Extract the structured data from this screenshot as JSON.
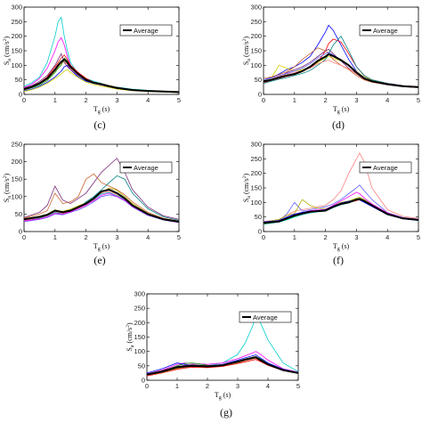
{
  "colors": {
    "average": "#000000",
    "records": [
      "#00cccc",
      "#ff00ff",
      "#00a000",
      "#0000ff",
      "#ff0000",
      "#d0d000",
      "#7a2a7a",
      "#cc6633",
      "#008080",
      "#ff8080",
      "#6060ff",
      "#b0b000"
    ]
  },
  "chart_data": [
    {
      "type": "line",
      "caption": "(c)",
      "xlabel": "T_g (s)",
      "ylabel": "S_a (cm/s^2)",
      "xlim": [
        0,
        5
      ],
      "ylim": [
        0,
        300
      ],
      "xticks": [
        0,
        1,
        2,
        3,
        4,
        5
      ],
      "yticks": [
        0,
        50,
        100,
        150,
        200,
        250,
        300
      ],
      "legend": {
        "label": "Average",
        "placement": "top-right"
      },
      "x": [
        0,
        0.25,
        0.5,
        0.75,
        1,
        1.1,
        1.2,
        1.3,
        1.4,
        1.5,
        1.75,
        2,
        2.25,
        2.5,
        2.75,
        3,
        3.5,
        4,
        4.5,
        5
      ],
      "average": [
        18,
        26,
        38,
        55,
        85,
        100,
        112,
        120,
        110,
        95,
        70,
        50,
        40,
        35,
        28,
        22,
        15,
        12,
        10,
        8
      ],
      "records": [
        [
          28,
          40,
          60,
          110,
          200,
          250,
          265,
          200,
          150,
          110,
          70,
          55,
          45,
          38,
          30,
          25,
          18,
          14,
          11,
          9
        ],
        [
          24,
          35,
          55,
          90,
          150,
          180,
          195,
          170,
          130,
          100,
          75,
          50,
          40,
          33,
          28,
          22,
          16,
          12,
          10,
          8
        ],
        [
          15,
          22,
          32,
          48,
          75,
          90,
          100,
          125,
          115,
          95,
          70,
          52,
          42,
          36,
          30,
          24,
          16,
          12,
          10,
          8
        ],
        [
          12,
          18,
          28,
          42,
          60,
          70,
          80,
          95,
          100,
          85,
          60,
          45,
          38,
          32,
          26,
          20,
          14,
          11,
          9,
          7
        ],
        [
          20,
          28,
          40,
          60,
          95,
          110,
          125,
          135,
          120,
          100,
          75,
          55,
          42,
          36,
          30,
          24,
          16,
          12,
          10,
          8
        ],
        [
          10,
          16,
          25,
          38,
          55,
          62,
          70,
          80,
          85,
          75,
          58,
          42,
          34,
          28,
          24,
          18,
          13,
          10,
          8,
          6
        ],
        [
          22,
          30,
          45,
          65,
          100,
          120,
          140,
          110,
          95,
          85,
          65,
          48,
          38,
          32,
          27,
          21,
          15,
          11,
          9,
          7
        ],
        [
          16,
          24,
          36,
          52,
          80,
          95,
          108,
          112,
          104,
          90,
          68,
          50,
          40,
          34,
          28,
          22,
          15,
          12,
          9,
          7
        ]
      ]
    },
    {
      "type": "line",
      "caption": "(d)",
      "xlabel": "T_g (s)",
      "ylabel": "S_a (cm/s^2)",
      "xlim": [
        0,
        5
      ],
      "ylim": [
        0,
        300
      ],
      "xticks": [
        0,
        1,
        2,
        3,
        4,
        5
      ],
      "yticks": [
        0,
        50,
        100,
        150,
        200,
        250,
        300
      ],
      "legend": {
        "label": "Average",
        "placement": "top-right"
      },
      "x": [
        0,
        0.25,
        0.5,
        0.75,
        1,
        1.25,
        1.5,
        1.75,
        2,
        2.1,
        2.25,
        2.5,
        2.75,
        3,
        3.25,
        3.5,
        4,
        4.5,
        5
      ],
      "average": [
        45,
        50,
        58,
        65,
        70,
        80,
        95,
        115,
        130,
        138,
        132,
        118,
        100,
        75,
        55,
        45,
        35,
        28,
        25
      ],
      "records": [
        [
          50,
          58,
          70,
          85,
          95,
          110,
          130,
          170,
          215,
          238,
          220,
          170,
          120,
          80,
          58,
          48,
          38,
          30,
          26
        ],
        [
          40,
          48,
          55,
          62,
          68,
          78,
          92,
          110,
          150,
          175,
          190,
          180,
          140,
          95,
          65,
          50,
          38,
          30,
          26
        ],
        [
          48,
          55,
          100,
          90,
          80,
          85,
          95,
          110,
          125,
          130,
          125,
          115,
          100,
          80,
          60,
          48,
          36,
          28,
          24
        ],
        [
          42,
          50,
          60,
          75,
          85,
          95,
          110,
          130,
          150,
          155,
          140,
          115,
          90,
          70,
          52,
          44,
          34,
          27,
          23
        ],
        [
          55,
          60,
          68,
          78,
          95,
          120,
          140,
          160,
          150,
          140,
          120,
          100,
          85,
          65,
          50,
          42,
          33,
          27,
          23
        ],
        [
          38,
          45,
          52,
          58,
          65,
          72,
          82,
          100,
          120,
          140,
          170,
          200,
          150,
          95,
          65,
          50,
          38,
          30,
          25
        ],
        [
          45,
          52,
          62,
          70,
          75,
          82,
          90,
          105,
          115,
          118,
          110,
          100,
          88,
          70,
          55,
          45,
          35,
          28,
          24
        ],
        [
          50,
          56,
          65,
          72,
          80,
          90,
          105,
          125,
          140,
          145,
          135,
          120,
          100,
          78,
          58,
          46,
          36,
          29,
          25
        ]
      ]
    },
    {
      "type": "line",
      "caption": "(e)",
      "xlabel": "T_g (s)",
      "ylabel": "S_a (cm/s^2)",
      "xlim": [
        0,
        5
      ],
      "ylim": [
        0,
        250
      ],
      "xticks": [
        0,
        1,
        2,
        3,
        4,
        5
      ],
      "yticks": [
        0,
        50,
        100,
        150,
        200,
        250
      ],
      "legend": {
        "label": "Average",
        "placement": "top-right"
      },
      "x": [
        0,
        0.5,
        0.75,
        1,
        1.25,
        1.5,
        1.75,
        2,
        2.25,
        2.5,
        2.75,
        3,
        3.25,
        3.5,
        4,
        4.5,
        5
      ],
      "average": [
        35,
        42,
        48,
        60,
        55,
        60,
        70,
        80,
        95,
        115,
        120,
        110,
        95,
        75,
        50,
        35,
        28
      ],
      "records": [
        [
          40,
          55,
          75,
          130,
          90,
          80,
          95,
          110,
          140,
          170,
          190,
          210,
          170,
          120,
          70,
          45,
          35
        ],
        [
          38,
          50,
          60,
          110,
          80,
          85,
          100,
          150,
          165,
          140,
          130,
          120,
          105,
          85,
          55,
          38,
          30
        ],
        [
          30,
          38,
          45,
          55,
          50,
          58,
          68,
          85,
          100,
          120,
          140,
          160,
          150,
          110,
          65,
          42,
          32
        ],
        [
          32,
          40,
          46,
          58,
          52,
          56,
          65,
          75,
          90,
          110,
          115,
          105,
          90,
          72,
          48,
          34,
          27
        ],
        [
          28,
          35,
          40,
          50,
          48,
          55,
          62,
          72,
          85,
          100,
          105,
          100,
          88,
          70,
          46,
          33,
          26
        ],
        [
          36,
          44,
          50,
          62,
          58,
          64,
          74,
          82,
          96,
          112,
          125,
          118,
          100,
          80,
          52,
          36,
          28
        ],
        [
          34,
          42,
          48,
          60,
          55,
          60,
          70,
          78,
          92,
          108,
          112,
          102,
          92,
          74,
          50,
          35,
          28
        ],
        [
          30,
          36,
          42,
          52,
          50,
          56,
          66,
          76,
          88,
          104,
          110,
          100,
          90,
          72,
          48,
          34,
          26
        ]
      ]
    },
    {
      "type": "line",
      "caption": "(f)",
      "xlabel": "T_g (s)",
      "ylabel": "S_a (cm/s^2)",
      "xlim": [
        0,
        5
      ],
      "ylim": [
        0,
        300
      ],
      "xticks": [
        0,
        1,
        2,
        3,
        4,
        5
      ],
      "yticks": [
        0,
        50,
        100,
        150,
        200,
        250,
        300
      ],
      "legend": {
        "label": "Average",
        "placement": "top-right"
      },
      "x": [
        0,
        0.5,
        0.75,
        1,
        1.25,
        1.5,
        1.75,
        2,
        2.25,
        2.5,
        2.75,
        3,
        3.1,
        3.25,
        3.5,
        4,
        4.5,
        5
      ],
      "average": [
        30,
        35,
        45,
        55,
        62,
        68,
        70,
        72,
        85,
        95,
        100,
        110,
        112,
        105,
        90,
        60,
        45,
        40
      ],
      "records": [
        [
          35,
          40,
          55,
          70,
          75,
          80,
          85,
          90,
          110,
          140,
          200,
          250,
          270,
          240,
          150,
          75,
          52,
          45
        ],
        [
          28,
          38,
          60,
          100,
          70,
          75,
          80,
          85,
          95,
          110,
          130,
          150,
          160,
          140,
          110,
          65,
          48,
          42
        ],
        [
          32,
          42,
          55,
          62,
          110,
          90,
          80,
          78,
          88,
          100,
          105,
          115,
          118,
          110,
          92,
          62,
          46,
          40
        ],
        [
          25,
          32,
          40,
          50,
          58,
          64,
          68,
          70,
          82,
          92,
          98,
          108,
          110,
          102,
          88,
          58,
          44,
          38
        ],
        [
          30,
          36,
          48,
          58,
          65,
          72,
          74,
          76,
          90,
          105,
          120,
          135,
          130,
          115,
          95,
          64,
          47,
          41
        ],
        [
          26,
          34,
          42,
          52,
          60,
          66,
          70,
          74,
          86,
          96,
          102,
          112,
          114,
          106,
          90,
          60,
          45,
          39
        ],
        [
          33,
          38,
          50,
          60,
          66,
          70,
          72,
          75,
          88,
          98,
          104,
          110,
          108,
          100,
          86,
          58,
          44,
          38
        ],
        [
          28,
          33,
          44,
          54,
          60,
          66,
          69,
          71,
          84,
          94,
          100,
          106,
          110,
          104,
          90,
          62,
          46,
          40
        ]
      ]
    },
    {
      "type": "line",
      "caption": "(g)",
      "xlabel": "T_g (s)",
      "ylabel": "S_a (cm/s^2)",
      "xlim": [
        0,
        5
      ],
      "ylim": [
        0,
        300
      ],
      "xticks": [
        0,
        1,
        2,
        3,
        4,
        5
      ],
      "yticks": [
        0,
        50,
        100,
        150,
        200,
        250,
        300
      ],
      "legend": {
        "label": "Average",
        "placement": "top-right"
      },
      "x": [
        0,
        0.5,
        1,
        1.25,
        1.5,
        2,
        2.5,
        3,
        3.25,
        3.5,
        3.6,
        3.75,
        4,
        4.5,
        5
      ],
      "average": [
        20,
        30,
        45,
        48,
        50,
        48,
        52,
        65,
        72,
        78,
        80,
        70,
        55,
        35,
        25
      ],
      "records": [
        [
          20,
          30,
          45,
          48,
          52,
          50,
          60,
          90,
          130,
          190,
          225,
          200,
          140,
          60,
          30
        ],
        [
          22,
          35,
          55,
          60,
          58,
          55,
          60,
          75,
          85,
          95,
          100,
          90,
          70,
          40,
          28
        ],
        [
          18,
          32,
          50,
          58,
          60,
          52,
          50,
          62,
          70,
          80,
          82,
          75,
          60,
          38,
          26
        ],
        [
          25,
          40,
          60,
          55,
          52,
          48,
          55,
          70,
          78,
          85,
          88,
          78,
          60,
          38,
          27
        ],
        [
          15,
          25,
          38,
          42,
          45,
          44,
          48,
          58,
          64,
          70,
          72,
          65,
          52,
          34,
          24
        ],
        [
          20,
          28,
          42,
          46,
          50,
          48,
          52,
          66,
          74,
          80,
          78,
          70,
          56,
          36,
          25
        ],
        [
          22,
          34,
          48,
          52,
          54,
          50,
          54,
          64,
          70,
          76,
          80,
          72,
          56,
          36,
          26
        ],
        [
          18,
          26,
          40,
          44,
          48,
          46,
          50,
          60,
          68,
          74,
          76,
          68,
          54,
          34,
          24
        ]
      ]
    }
  ]
}
